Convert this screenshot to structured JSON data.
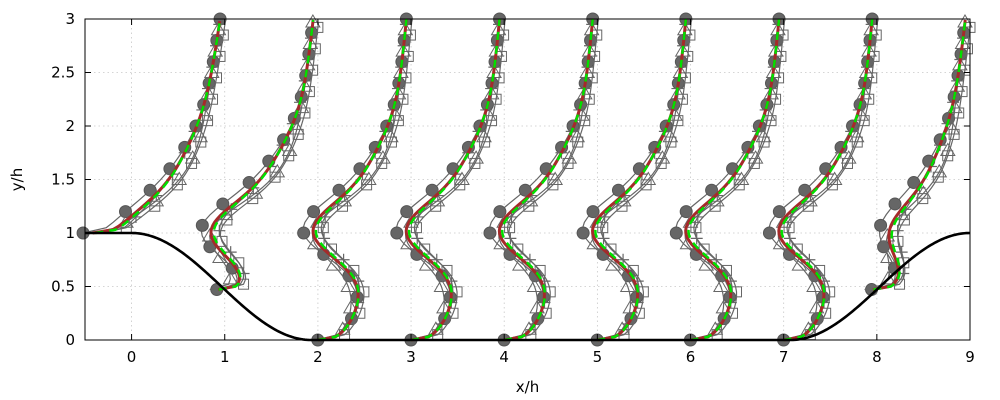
{
  "chart_data": {
    "type": "line",
    "title": "",
    "xlabel": "x/h",
    "ylabel": "y/h",
    "xlim": [
      -0.5,
      9
    ],
    "ylim": [
      0,
      3
    ],
    "xticks": [
      "0",
      "1",
      "2",
      "3",
      "4",
      "5",
      "6",
      "7",
      "8",
      "9"
    ],
    "yticks": [
      "0",
      "0.5",
      "1",
      "1.5",
      "2",
      "2.5",
      "3"
    ],
    "grid": true,
    "legend": "none",
    "colors": {
      "hill": "#000000",
      "reference": "#666666",
      "model_red": "#a52a2a",
      "model_green": "#00e000"
    },
    "profile_stations": [
      0,
      1,
      2,
      3,
      4,
      5,
      6,
      7,
      8
    ],
    "hill_geometry": {
      "x": [
        -0.5,
        0,
        0.5,
        1,
        1.5,
        1.93,
        7.07,
        7.5,
        8,
        8.5,
        9
      ],
      "y": [
        1,
        1,
        0.84,
        0.5,
        0.17,
        0,
        0,
        0.17,
        0.5,
        0.84,
        1
      ]
    },
    "marker_series": [
      "circle",
      "square",
      "triangle",
      "plus"
    ]
  }
}
